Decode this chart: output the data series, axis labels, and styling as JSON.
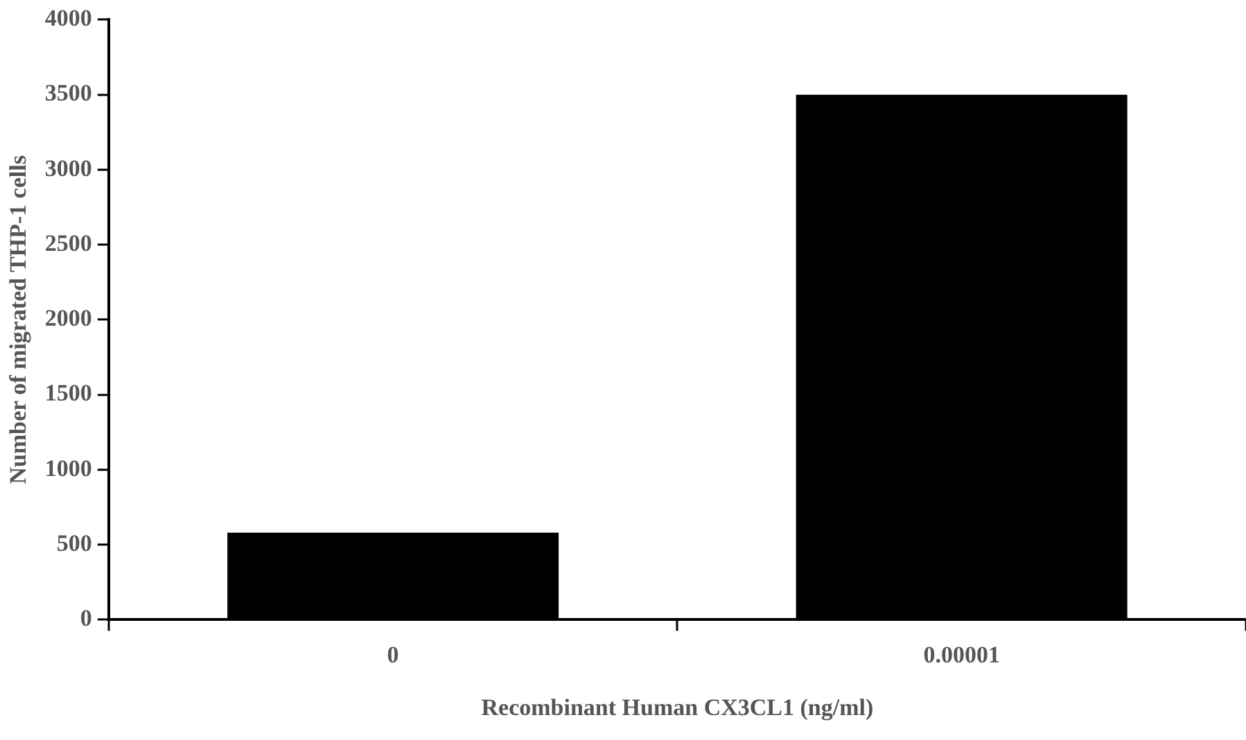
{
  "chart_data": {
    "type": "bar",
    "xlabel": "Recombinant Human CX3CL1 (ng/ml)",
    "ylabel": "Number of migrated THP-1 cells",
    "categories": [
      "0",
      "0.00001"
    ],
    "values": [
      580,
      3500
    ],
    "color": "#000000",
    "ylim": [
      0,
      4000
    ],
    "yticks": [
      0,
      500,
      1000,
      1500,
      2000,
      2500,
      3000,
      3500,
      4000
    ],
    "grid": false,
    "legend": false
  }
}
